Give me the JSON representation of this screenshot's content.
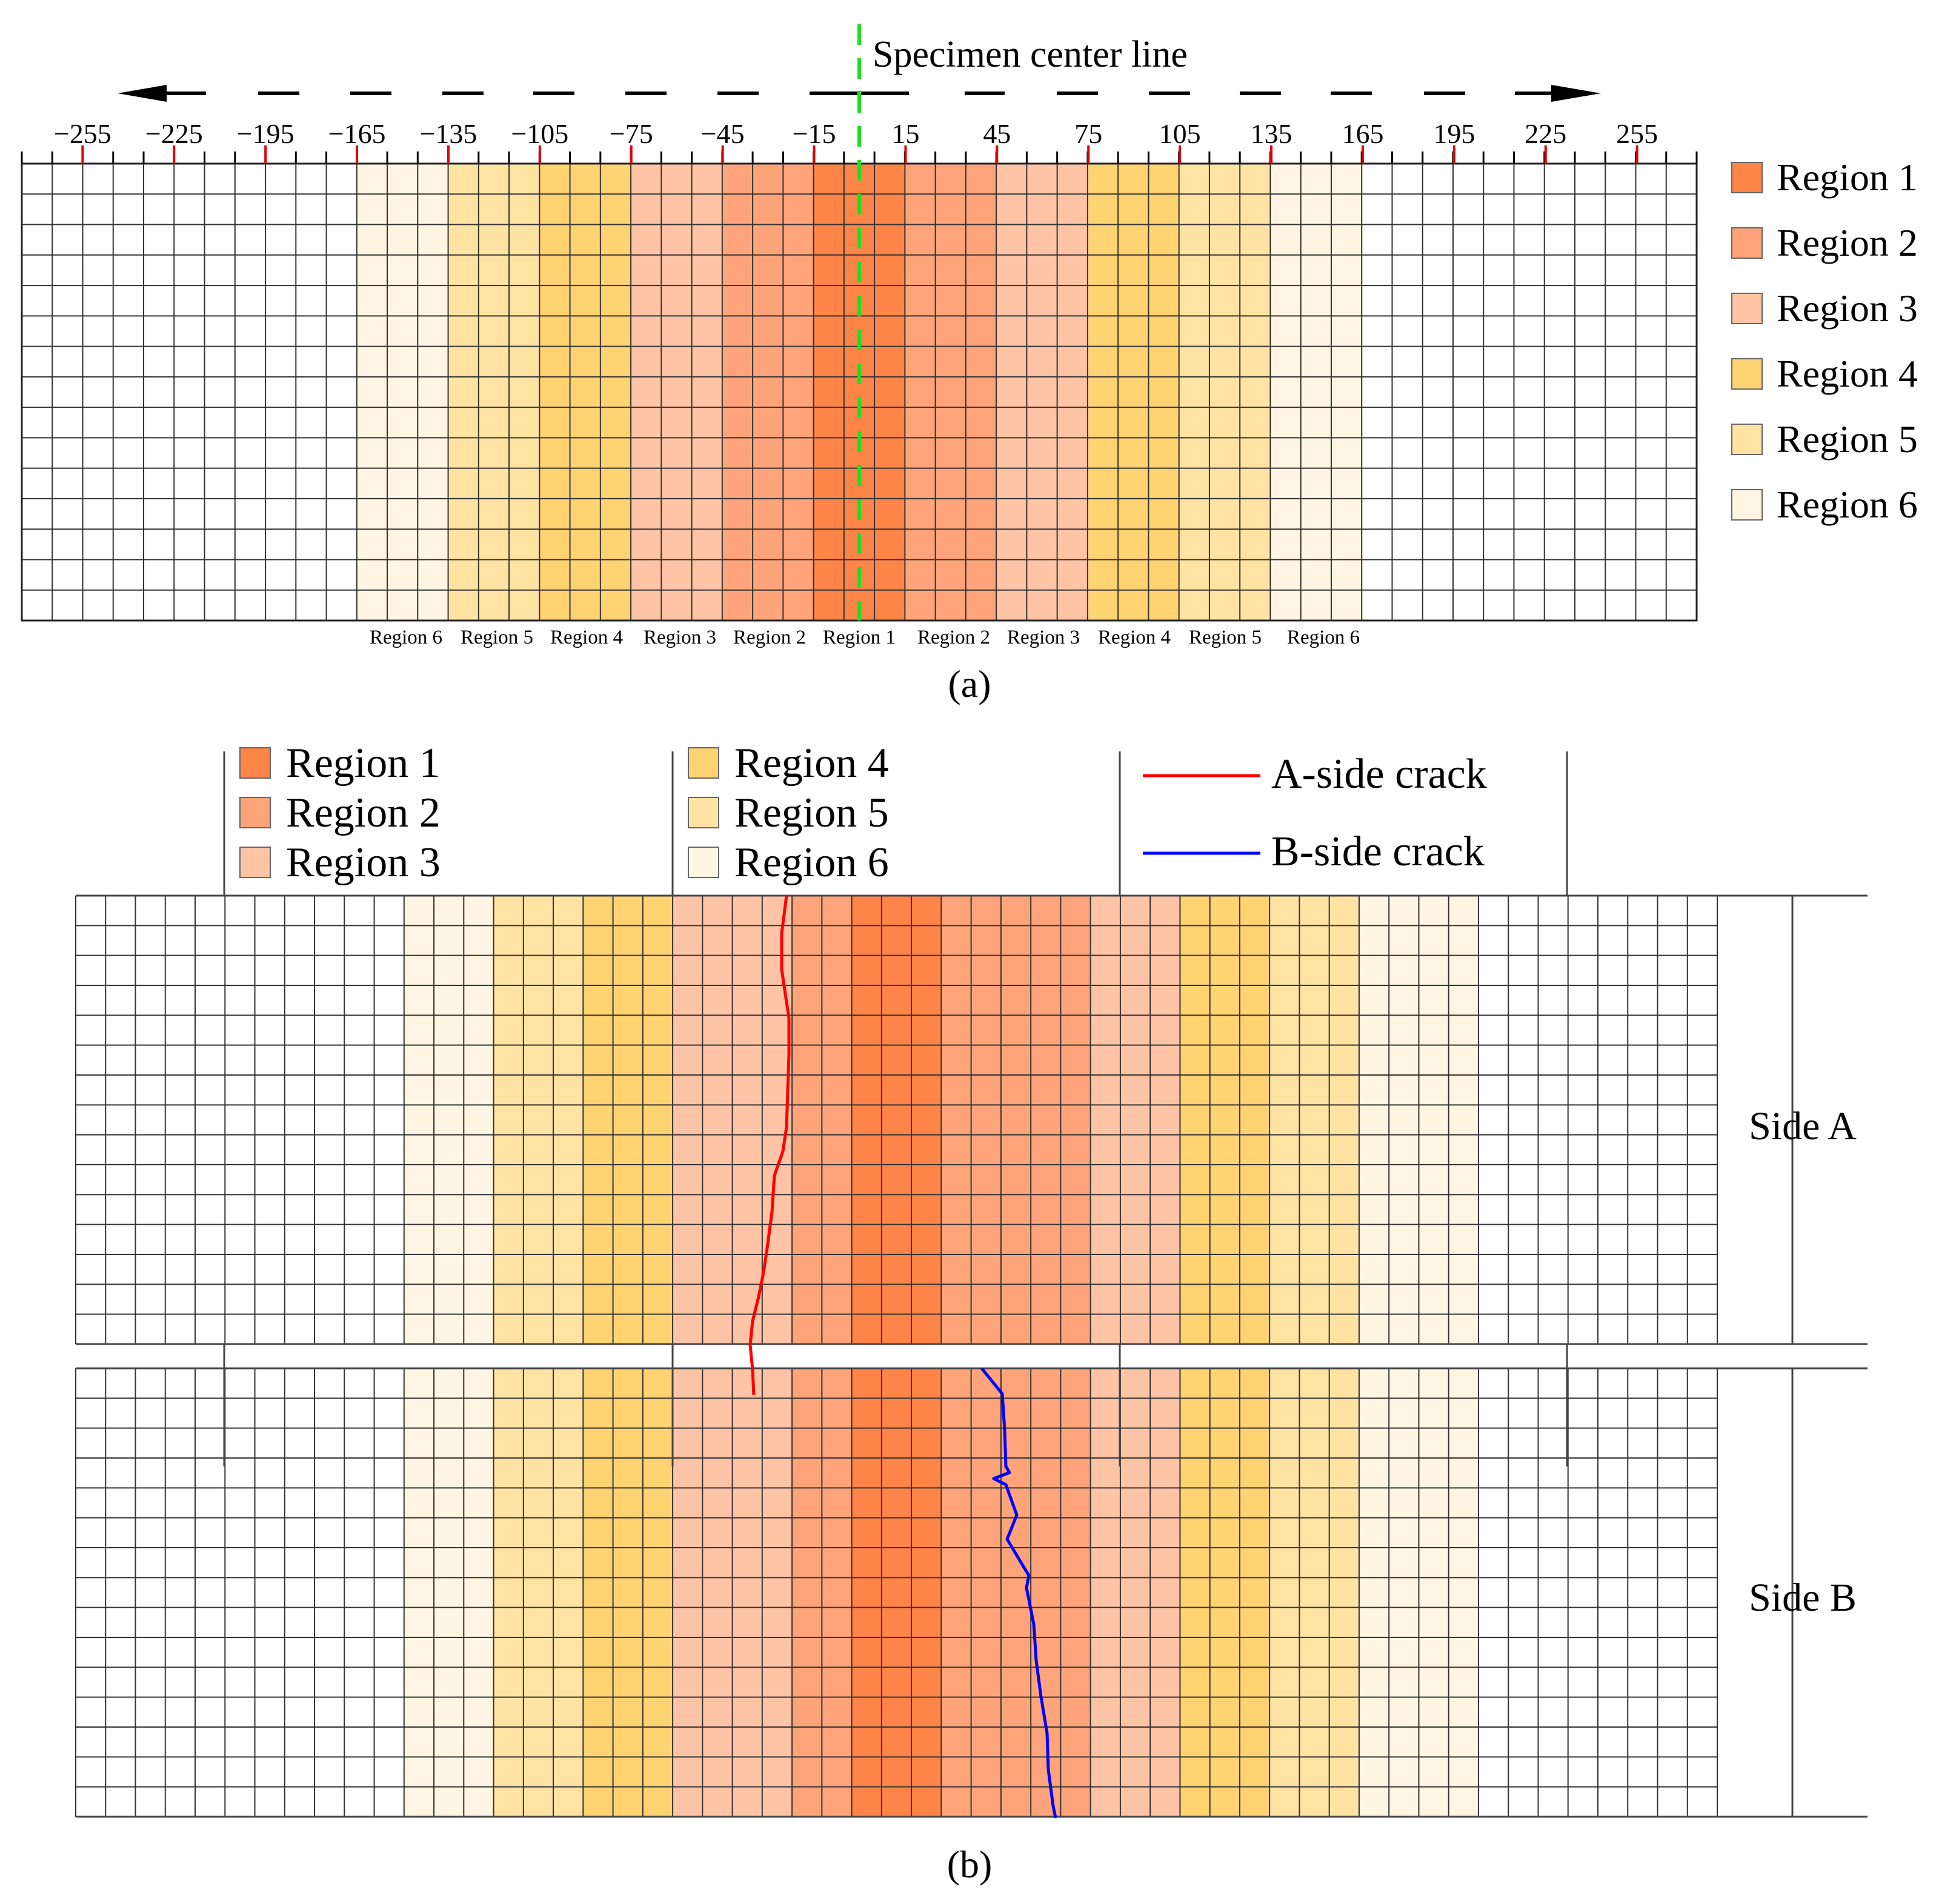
{
  "panel_a": {
    "center_line_label": "Specimen center line",
    "tick_labels": [
      "−255",
      "−225",
      "−195",
      "−165",
      "−135",
      "−105",
      "−75",
      "−45",
      "−15",
      "15",
      "45",
      "75",
      "105",
      "135",
      "165",
      "195",
      "225",
      "255"
    ],
    "bottom_labels": [
      "Region 6",
      "Region 5",
      "Region 4",
      "Region 3",
      "Region 2",
      "Region 1",
      "Region 2",
      "Region 3",
      "Region 4",
      "Region 5",
      "Region 6"
    ],
    "legend": [
      "Region 1",
      "Region 2",
      "Region 3",
      "Region 4",
      "Region 5",
      "Region 6"
    ],
    "caption": "(a)"
  },
  "panel_b": {
    "legend_regions": [
      "Region 1",
      "Region 2",
      "Region 3",
      "Region 4",
      "Region 5",
      "Region 6"
    ],
    "legend_cracks": [
      "A-side crack",
      "B-side crack"
    ],
    "side_a_label": "Side A",
    "side_b_label": "Side B",
    "caption": "(b)"
  },
  "colors": {
    "region_1": "#FF8447",
    "region_2": "#FFA47A",
    "region_3": "#FFC4A6",
    "region_4": "#FFD272",
    "region_5": "#FFE3A2",
    "region_6": "#FFF5E2",
    "a_crack": "#FF0000",
    "b_crack": "#0000FF",
    "center_line": "#22DD22",
    "tick_red": "#E00000"
  }
}
